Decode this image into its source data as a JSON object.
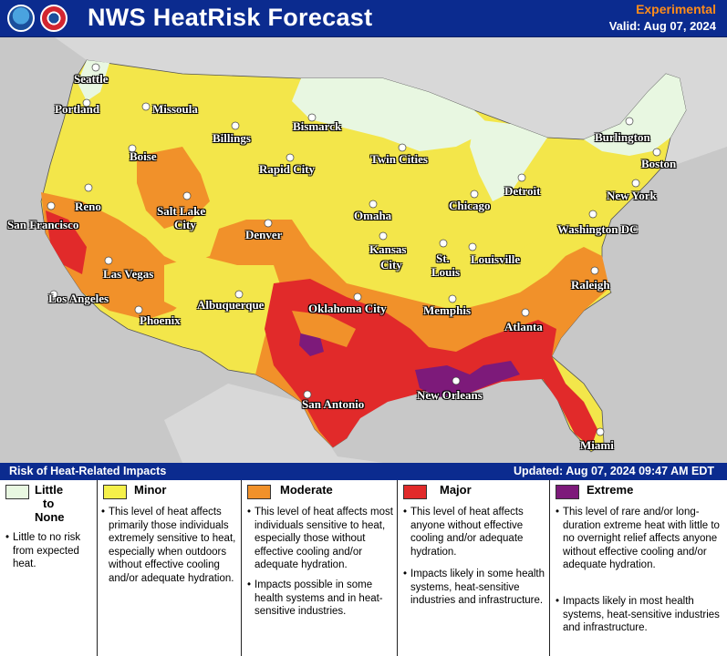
{
  "header": {
    "title": "NWS HeatRisk Forecast",
    "experimental": "Experimental",
    "valid": "Valid: Aug 07, 2024"
  },
  "map": {
    "cities": [
      {
        "name": "Seattle"
      },
      {
        "name": "Portland"
      },
      {
        "name": "Missoula"
      },
      {
        "name": "Bismarck"
      },
      {
        "name": "Billings"
      },
      {
        "name": "Boise"
      },
      {
        "name": "Twin Cities"
      },
      {
        "name": "Burlington"
      },
      {
        "name": "Boston"
      },
      {
        "name": "Rapid City"
      },
      {
        "name": "Detroit"
      },
      {
        "name": "Reno"
      },
      {
        "name": "Salt Lake"
      },
      {
        "name": "City"
      },
      {
        "name": "Chicago"
      },
      {
        "name": "New York"
      },
      {
        "name": "San Francisco"
      },
      {
        "name": "Omaha"
      },
      {
        "name": "Washington DC"
      },
      {
        "name": "Denver"
      },
      {
        "name": "Kansas"
      },
      {
        "name": "City"
      },
      {
        "name": "St."
      },
      {
        "name": "Louis"
      },
      {
        "name": "Louisville"
      },
      {
        "name": "Las Vegas"
      },
      {
        "name": "Raleigh"
      },
      {
        "name": "Los Angeles"
      },
      {
        "name": "Albuquerque"
      },
      {
        "name": "Oklahoma City"
      },
      {
        "name": "Memphis"
      },
      {
        "name": "Phoenix"
      },
      {
        "name": "Atlanta"
      },
      {
        "name": "New Orleans"
      },
      {
        "name": "San Antonio"
      },
      {
        "name": "Miami"
      }
    ],
    "colors": {
      "little": "#e8f7e1",
      "minor": "#f5e94a",
      "moderate": "#f1912a",
      "major": "#e12a2a",
      "extreme": "#7d1a7a",
      "background": "#c8c8c8"
    }
  },
  "legend": {
    "title": "Risk of Heat-Related Impacts",
    "updated": "Updated: Aug 07, 2024 09:47 AM EDT",
    "categories": [
      {
        "name_lines": [
          "Little",
          "to",
          "None"
        ],
        "color": "#e8f7e1",
        "desc1": "Little to no risk from expected heat."
      },
      {
        "name": "Minor",
        "color": "#f5f04a",
        "desc1": "This level of heat affects primarily those individuals extremely sensitive to heat, especially when outdoors without effective cooling and/or adequate hydration."
      },
      {
        "name": "Moderate",
        "color": "#f1912a",
        "desc1": "This level of heat affects most individuals sensitive to heat, especially those without effective cooling and/or adequate hydration.",
        "desc2": "Impacts possible in some health systems and in heat-sensitive industries."
      },
      {
        "name": "Major",
        "color": "#e12a2a",
        "desc1": "This level of heat affects anyone without effective cooling and/or adequate hydration.",
        "desc2": "Impacts likely in some health systems, heat-sensitive industries and infrastructure."
      },
      {
        "name": "Extreme",
        "color": "#7d1a7a",
        "desc1": "This level of rare and/or long-duration extreme heat with little to no overnight relief affects anyone without effective cooling and/or adequate hydration.",
        "desc2": "Impacts likely in most health systems, heat-sensitive industries and infrastructure."
      }
    ]
  }
}
